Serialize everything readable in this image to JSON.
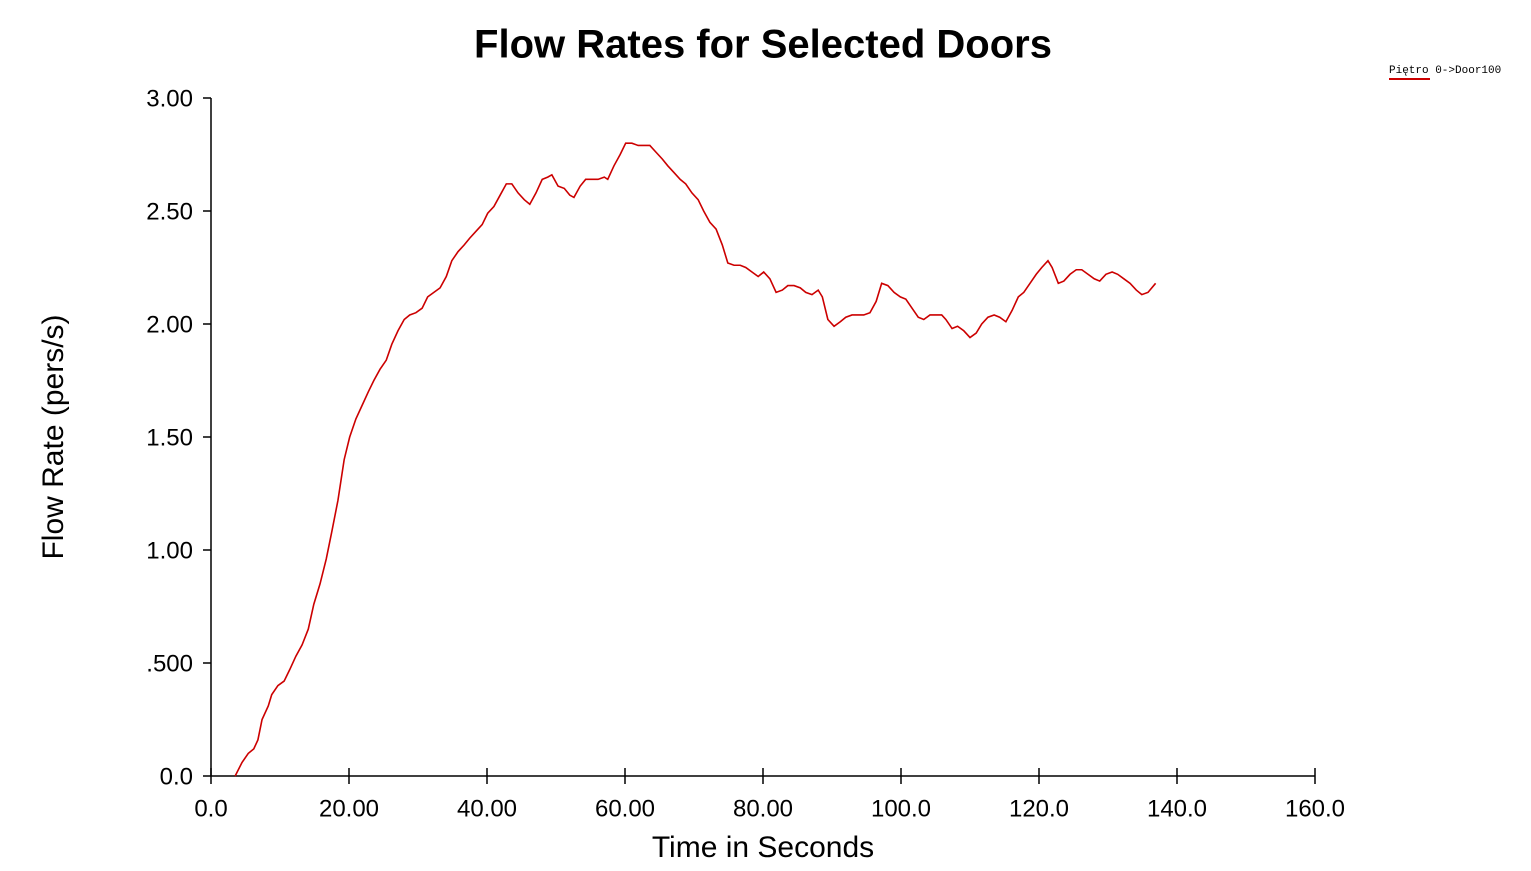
{
  "chart_data": {
    "type": "line",
    "title": "Flow Rates for Selected Doors",
    "x_label": "Time in Seconds",
    "y_label": "Flow Rate (pers/s)",
    "x": [
      3.5,
      4.5,
      5.4,
      6.2,
      6.8,
      7.4,
      8.3,
      8.8,
      9.7,
      10.6,
      11.4,
      12.3,
      13.2,
      14.1,
      14.9,
      15.8,
      16.7,
      17.5,
      18.4,
      19.3,
      20.1,
      21.0,
      21.9,
      22.8,
      23.6,
      24.5,
      25.4,
      26.2,
      27.1,
      28.0,
      28.8,
      29.7,
      30.6,
      31.4,
      32.3,
      33.2,
      34.1,
      34.9,
      35.8,
      36.7,
      37.5,
      38.4,
      39.3,
      40.1,
      41.0,
      41.9,
      42.8,
      43.6,
      44.5,
      45.4,
      46.2,
      47.1,
      48.0,
      48.8,
      49.4,
      50.3,
      51.2,
      52.0,
      52.6,
      53.5,
      54.3,
      55.2,
      56.1,
      57.0,
      57.5,
      58.4,
      59.3,
      60.1,
      61.0,
      61.9,
      62.8,
      63.6,
      64.5,
      65.4,
      66.2,
      67.1,
      68.0,
      68.8,
      69.7,
      70.6,
      71.4,
      72.3,
      73.2,
      74.1,
      74.9,
      75.8,
      76.7,
      77.5,
      78.4,
      79.3,
      80.1,
      81.0,
      81.9,
      82.8,
      83.6,
      84.5,
      85.4,
      86.2,
      87.1,
      88.0,
      88.6,
      89.4,
      90.3,
      91.2,
      92.0,
      92.9,
      93.8,
      94.6,
      95.5,
      96.4,
      97.2,
      98.1,
      99.0,
      99.9,
      100.7,
      101.6,
      102.5,
      103.3,
      104.2,
      105.1,
      105.9,
      106.5,
      107.4,
      108.2,
      109.1,
      110.0,
      110.9,
      111.7,
      112.6,
      113.5,
      114.3,
      115.2,
      116.1,
      117.0,
      117.8,
      118.7,
      119.6,
      120.4,
      121.3,
      121.9,
      122.8,
      123.6,
      124.5,
      125.4,
      126.2,
      127.1,
      128.0,
      128.8,
      129.7,
      130.6,
      131.4,
      132.3,
      133.2,
      134.1,
      134.9,
      135.8,
      136.9
    ],
    "series": [
      {
        "name": "Piętro 0->Door100",
        "color": "#cc0000",
        "values": [
          0,
          0.06,
          0.1,
          0.12,
          0.16,
          0.25,
          0.31,
          0.36,
          0.4,
          0.42,
          0.47,
          0.53,
          0.58,
          0.65,
          0.76,
          0.85,
          0.96,
          1.08,
          1.22,
          1.4,
          1.5,
          1.58,
          1.64,
          1.7,
          1.75,
          1.8,
          1.84,
          1.91,
          1.97,
          2.02,
          2.04,
          2.05,
          2.07,
          2.12,
          2.14,
          2.16,
          2.21,
          2.28,
          2.32,
          2.35,
          2.38,
          2.41,
          2.44,
          2.49,
          2.52,
          2.57,
          2.62,
          2.62,
          2.58,
          2.55,
          2.53,
          2.58,
          2.64,
          2.65,
          2.66,
          2.61,
          2.6,
          2.57,
          2.56,
          2.61,
          2.64,
          2.64,
          2.64,
          2.65,
          2.64,
          2.7,
          2.75,
          2.8,
          2.8,
          2.79,
          2.79,
          2.79,
          2.76,
          2.73,
          2.7,
          2.67,
          2.64,
          2.62,
          2.58,
          2.55,
          2.5,
          2.45,
          2.42,
          2.35,
          2.27,
          2.26,
          2.26,
          2.25,
          2.23,
          2.21,
          2.23,
          2.2,
          2.14,
          2.15,
          2.17,
          2.17,
          2.16,
          2.14,
          2.13,
          2.15,
          2.12,
          2.02,
          1.99,
          2.01,
          2.03,
          2.04,
          2.04,
          2.04,
          2.05,
          2.1,
          2.18,
          2.17,
          2.14,
          2.12,
          2.11,
          2.07,
          2.03,
          2.02,
          2.04,
          2.04,
          2.04,
          2.02,
          1.98,
          1.99,
          1.97,
          1.94,
          1.96,
          2.0,
          2.03,
          2.04,
          2.03,
          2.01,
          2.06,
          2.12,
          2.14,
          2.18,
          2.22,
          2.25,
          2.28,
          2.25,
          2.18,
          2.19,
          2.22,
          2.24,
          2.24,
          2.22,
          2.2,
          2.19,
          2.22,
          2.23,
          2.22,
          2.2,
          2.18,
          2.15,
          2.13,
          2.14,
          2.18
        ]
      }
    ],
    "xlim": [
      0,
      160
    ],
    "xticks": [
      {
        "value": 0,
        "label": "0.0"
      },
      {
        "value": 20,
        "label": "20.00"
      },
      {
        "value": 40,
        "label": "40.00"
      },
      {
        "value": 60,
        "label": "60.00"
      },
      {
        "value": 80,
        "label": "80.00"
      },
      {
        "value": 100,
        "label": "100.0"
      },
      {
        "value": 120,
        "label": "120.0"
      },
      {
        "value": 140,
        "label": "140.0"
      },
      {
        "value": 160,
        "label": "160.0"
      }
    ],
    "ylim": [
      0,
      3
    ],
    "yticks": [
      {
        "value": 0,
        "label": "0.0"
      },
      {
        "value": 0.5,
        "label": ".500"
      },
      {
        "value": 1,
        "label": "1.00"
      },
      {
        "value": 1.5,
        "label": "1.50"
      },
      {
        "value": 2,
        "label": "2.00"
      },
      {
        "value": 2.5,
        "label": "2.50"
      },
      {
        "value": 3,
        "label": "3.00"
      }
    ]
  }
}
